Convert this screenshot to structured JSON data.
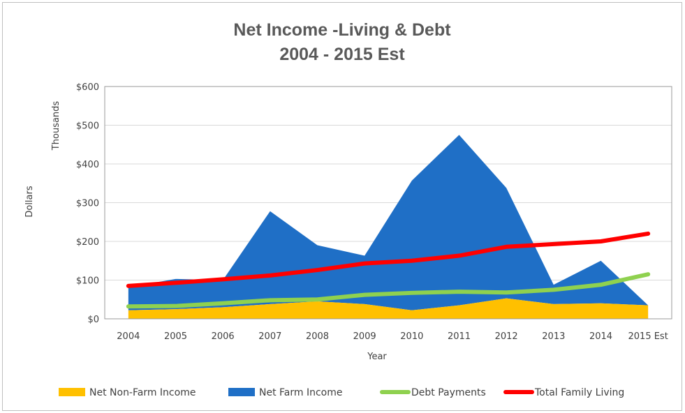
{
  "chart_data": {
    "type": "area",
    "title": "Net Income -Living & Debt",
    "subtitle": "2004 - 2015 Est",
    "xlabel": "Year",
    "ylabel": "Dollars",
    "y_unit_label": "Thousands",
    "categories": [
      "2004",
      "2005",
      "2006",
      "2007",
      "2008",
      "2009",
      "2010",
      "2011",
      "2012",
      "2013",
      "2014",
      "2015 Est"
    ],
    "y_ticks": [
      "$0",
      "$100",
      "$200",
      "$300",
      "$400",
      "$500",
      "$600"
    ],
    "ylim": [
      0,
      600
    ],
    "grid": true,
    "legend_position": "bottom",
    "series": [
      {
        "name": "Net Non-Farm Income",
        "kind": "area",
        "stack": true,
        "color": "#ffc000",
        "values": [
          22,
          25,
          30,
          38,
          45,
          38,
          22,
          35,
          53,
          38,
          40,
          35
        ]
      },
      {
        "name": "Net Farm Income",
        "kind": "area",
        "stack": true,
        "color": "#1f6fc6",
        "values": [
          60,
          78,
          70,
          240,
          145,
          125,
          335,
          440,
          285,
          50,
          110,
          0
        ]
      },
      {
        "name": "Debt Payments",
        "kind": "line",
        "color": "#8fd14f",
        "values": [
          32,
          33,
          40,
          48,
          50,
          62,
          67,
          70,
          68,
          75,
          88,
          115
        ]
      },
      {
        "name": "Total Family Living",
        "kind": "line",
        "color": "#ff0000",
        "values": [
          85,
          93,
          102,
          112,
          126,
          143,
          150,
          163,
          186,
          193,
          200,
          220
        ]
      }
    ]
  }
}
